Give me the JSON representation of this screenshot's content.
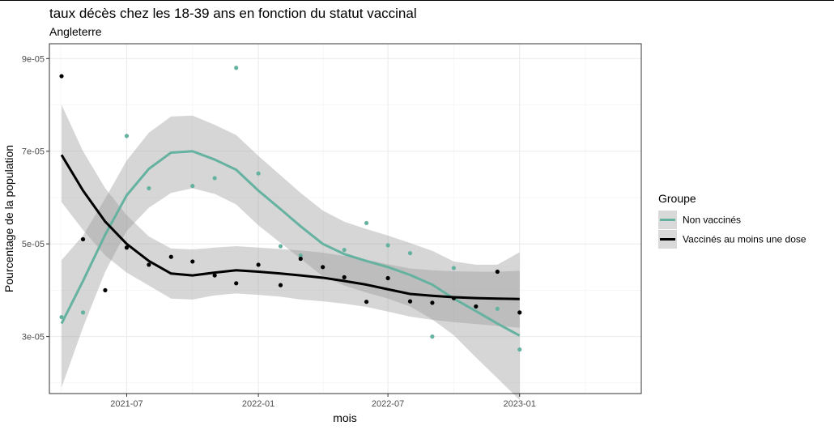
{
  "title": "taux décès chez les 18-39 ans en fonction du statut vaccinal",
  "subtitle": "Angleterre",
  "chart_data": {
    "type": "scatter",
    "xlabel": "mois",
    "ylabel": "Pourcentage de la population",
    "x_ticks": [
      "2021-07",
      "2022-01",
      "2022-07",
      "2023-01"
    ],
    "y_ticks": [
      "3e-05",
      "5e-05",
      "7e-05",
      "9e-05"
    ],
    "x_range": [
      "2021-03-15",
      "2023-06-20"
    ],
    "ylim": [
      1.77e-05,
      9.32e-05
    ],
    "grid": true,
    "legend_position": "right",
    "legend": {
      "title": "Groupe",
      "entries": [
        "Non vaccinés",
        "Vaccinés au moins une dose"
      ]
    },
    "series": [
      {
        "name": "Non vaccinés",
        "color": "#66B2A0",
        "points": [
          [
            "2021-04-01",
            3.42e-05
          ],
          [
            "2021-05-01",
            3.52e-05
          ],
          [
            "2021-07-01",
            7.33e-05
          ],
          [
            "2021-08-01",
            6.2e-05
          ],
          [
            "2021-10-01",
            6.25e-05
          ],
          [
            "2021-11-01",
            6.42e-05
          ],
          [
            "2021-12-01",
            8.8e-05
          ],
          [
            "2022-01-01",
            6.52e-05
          ],
          [
            "2022-02-01",
            4.95e-05
          ],
          [
            "2022-03-01",
            4.75e-05
          ],
          [
            "2022-05-01",
            4.87e-05
          ],
          [
            "2022-06-01",
            5.45e-05
          ],
          [
            "2022-07-01",
            4.97e-05
          ],
          [
            "2022-08-01",
            4.8e-05
          ],
          [
            "2022-09-01",
            3e-05
          ],
          [
            "2022-10-01",
            4.48e-05
          ],
          [
            "2022-11-01",
            3.65e-05
          ],
          [
            "2022-12-01",
            3.6e-05
          ],
          [
            "2023-01-01",
            2.72e-05
          ]
        ],
        "smooth": [
          [
            "2021-04-01",
            3.28e-05
          ],
          [
            "2021-05-01",
            4.2e-05
          ],
          [
            "2021-06-01",
            5.2e-05
          ],
          [
            "2021-07-01",
            6.05e-05
          ],
          [
            "2021-08-01",
            6.62e-05
          ],
          [
            "2021-09-01",
            6.97e-05
          ],
          [
            "2021-10-01",
            7e-05
          ],
          [
            "2021-11-01",
            6.82e-05
          ],
          [
            "2021-12-01",
            6.6e-05
          ],
          [
            "2022-01-01",
            6.15e-05
          ],
          [
            "2022-02-01",
            5.75e-05
          ],
          [
            "2022-03-01",
            5.38e-05
          ],
          [
            "2022-04-01",
            5e-05
          ],
          [
            "2022-05-01",
            4.78e-05
          ],
          [
            "2022-06-01",
            4.63e-05
          ],
          [
            "2022-07-01",
            4.5e-05
          ],
          [
            "2022-08-01",
            4.33e-05
          ],
          [
            "2022-09-01",
            4.12e-05
          ],
          [
            "2022-10-01",
            3.82e-05
          ],
          [
            "2022-11-01",
            3.55e-05
          ],
          [
            "2022-12-01",
            3.28e-05
          ],
          [
            "2023-01-01",
            3.02e-05
          ]
        ],
        "band": [
          [
            1.9e-05,
            4.65e-05
          ],
          [
            3.2e-05,
            5.18e-05
          ],
          [
            4.4e-05,
            5.98e-05
          ],
          [
            5.28e-05,
            6.8e-05
          ],
          [
            5.78e-05,
            7.4e-05
          ],
          [
            6.1e-05,
            7.75e-05
          ],
          [
            6.2e-05,
            7.77e-05
          ],
          [
            6.08e-05,
            7.57e-05
          ],
          [
            5.85e-05,
            7.35e-05
          ],
          [
            5.4e-05,
            6.9e-05
          ],
          [
            5.02e-05,
            6.48e-05
          ],
          [
            4.68e-05,
            6.1e-05
          ],
          [
            4.3e-05,
            5.72e-05
          ],
          [
            4.1e-05,
            5.48e-05
          ],
          [
            3.95e-05,
            5.32e-05
          ],
          [
            3.82e-05,
            5.18e-05
          ],
          [
            3.65e-05,
            5.02e-05
          ],
          [
            3.37e-05,
            4.85e-05
          ],
          [
            3.03e-05,
            4.62e-05
          ],
          [
            2.55e-05,
            4.55e-05
          ],
          [
            2.1e-05,
            4.55e-05
          ],
          [
            1.63e-05,
            4.82e-05
          ]
        ]
      },
      {
        "name": "Vaccinés au moins une dose",
        "color": "#000000",
        "points": [
          [
            "2021-04-01",
            8.62e-05
          ],
          [
            "2021-05-01",
            5.1e-05
          ],
          [
            "2021-06-01",
            4e-05
          ],
          [
            "2021-07-01",
            4.92e-05
          ],
          [
            "2021-08-01",
            4.55e-05
          ],
          [
            "2021-09-01",
            4.72e-05
          ],
          [
            "2021-10-01",
            4.62e-05
          ],
          [
            "2021-11-01",
            4.32e-05
          ],
          [
            "2021-12-01",
            4.15e-05
          ],
          [
            "2022-01-01",
            4.55e-05
          ],
          [
            "2022-02-01",
            4.11e-05
          ],
          [
            "2022-03-01",
            4.68e-05
          ],
          [
            "2022-04-01",
            4.5e-05
          ],
          [
            "2022-05-01",
            4.28e-05
          ],
          [
            "2022-06-01",
            3.75e-05
          ],
          [
            "2022-07-01",
            4.26e-05
          ],
          [
            "2022-08-01",
            3.76e-05
          ],
          [
            "2022-09-01",
            3.73e-05
          ],
          [
            "2022-10-01",
            3.83e-05
          ],
          [
            "2022-11-01",
            3.65e-05
          ],
          [
            "2022-12-01",
            4.4e-05
          ],
          [
            "2023-01-01",
            3.52e-05
          ]
        ],
        "smooth": [
          [
            "2021-04-01",
            6.92e-05
          ],
          [
            "2021-05-01",
            6.15e-05
          ],
          [
            "2021-06-01",
            5.48e-05
          ],
          [
            "2021-07-01",
            5e-05
          ],
          [
            "2021-08-01",
            4.63e-05
          ],
          [
            "2021-09-01",
            4.36e-05
          ],
          [
            "2021-10-01",
            4.32e-05
          ],
          [
            "2021-11-01",
            4.38e-05
          ],
          [
            "2021-12-01",
            4.43e-05
          ],
          [
            "2022-01-01",
            4.4e-05
          ],
          [
            "2022-02-01",
            4.36e-05
          ],
          [
            "2022-03-01",
            4.32e-05
          ],
          [
            "2022-04-01",
            4.27e-05
          ],
          [
            "2022-05-01",
            4.2e-05
          ],
          [
            "2022-06-01",
            4.12e-05
          ],
          [
            "2022-07-01",
            4.02e-05
          ],
          [
            "2022-08-01",
            3.92e-05
          ],
          [
            "2022-09-01",
            3.88e-05
          ],
          [
            "2022-10-01",
            3.85e-05
          ],
          [
            "2022-11-01",
            3.83e-05
          ],
          [
            "2022-12-01",
            3.82e-05
          ],
          [
            "2023-01-01",
            3.81e-05
          ]
        ],
        "band": [
          [
            5.9e-05,
            8e-05
          ],
          [
            5.3e-05,
            7e-05
          ],
          [
            4.75e-05,
            6.2e-05
          ],
          [
            4.38e-05,
            5.62e-05
          ],
          [
            4.1e-05,
            5.16e-05
          ],
          [
            3.82e-05,
            4.9e-05
          ],
          [
            3.8e-05,
            4.88e-05
          ],
          [
            3.89e-05,
            4.92e-05
          ],
          [
            3.93e-05,
            4.95e-05
          ],
          [
            3.9e-05,
            4.92e-05
          ],
          [
            3.86e-05,
            4.89e-05
          ],
          [
            3.8e-05,
            4.86e-05
          ],
          [
            3.76e-05,
            4.81e-05
          ],
          [
            3.71e-05,
            4.74e-05
          ],
          [
            3.64e-05,
            4.66e-05
          ],
          [
            3.54e-05,
            4.56e-05
          ],
          [
            3.43e-05,
            4.47e-05
          ],
          [
            3.36e-05,
            4.43e-05
          ],
          [
            3.31e-05,
            4.41e-05
          ],
          [
            3.27e-05,
            4.4e-05
          ],
          [
            3.23e-05,
            4.4e-05
          ],
          [
            3.19e-05,
            4.42e-05
          ]
        ]
      }
    ]
  }
}
